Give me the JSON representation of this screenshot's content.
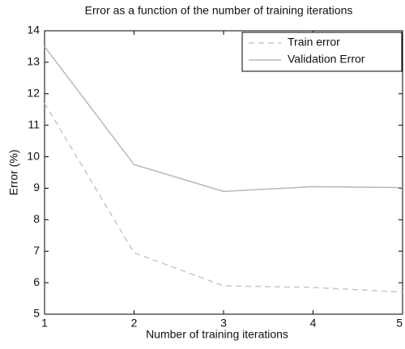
{
  "chart_data": {
    "type": "line",
    "title": "Error as a function of the number of training iterations",
    "xlabel": "Number of training iterations",
    "ylabel": "Error (%)",
    "x": [
      1,
      2,
      3,
      4,
      5
    ],
    "series": [
      {
        "name": "Train error",
        "color": "#c8c8c8",
        "dash": true,
        "values": [
          11.7,
          6.95,
          5.9,
          5.85,
          5.7
        ]
      },
      {
        "name": "Validation Error",
        "color": "#b8b8b8",
        "dash": false,
        "values": [
          13.5,
          9.75,
          8.9,
          9.05,
          9.02
        ]
      }
    ],
    "xlim": [
      1,
      5
    ],
    "xticks": [
      1,
      2,
      3,
      4,
      5
    ],
    "ylim": [
      5,
      14
    ],
    "yticks": [
      5,
      6,
      7,
      8,
      9,
      10,
      11,
      12,
      13,
      14
    ],
    "grid": false,
    "legend": "upper right"
  }
}
